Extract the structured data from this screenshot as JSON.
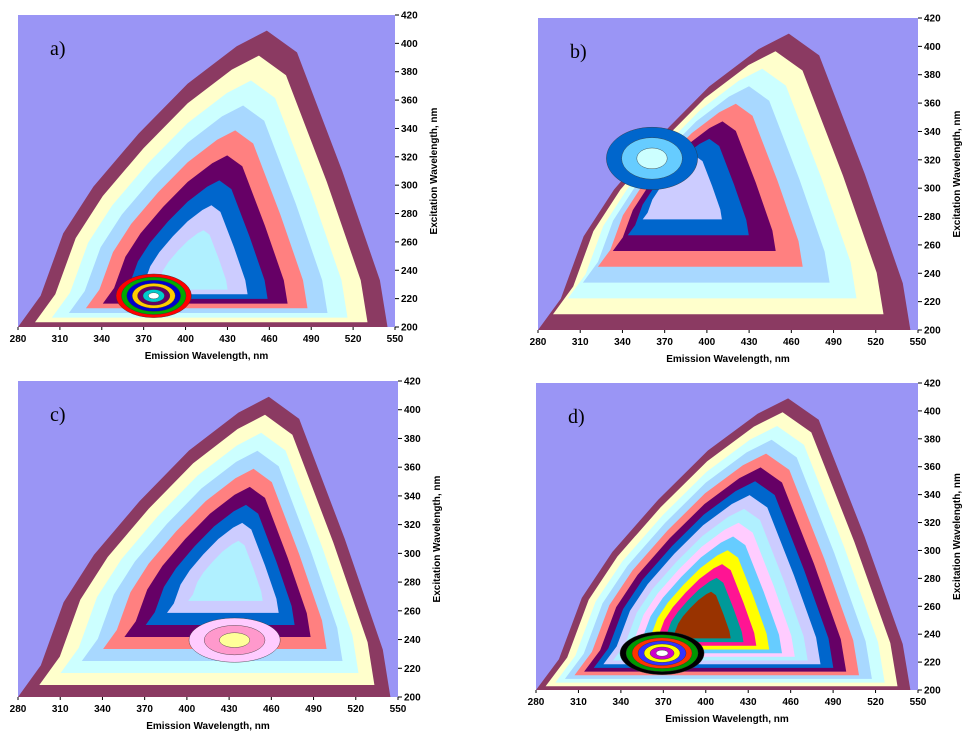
{
  "chart_data": [
    {
      "type": "contour",
      "annotation": "a)",
      "x_label": "Emission Wavelength, nm",
      "y_label": "Excitation Wavelength, nm",
      "xlim": [
        280,
        550
      ],
      "xticks": [
        280,
        310,
        340,
        370,
        400,
        430,
        460,
        490,
        520,
        550
      ],
      "ylim": [
        200,
        420
      ],
      "yticks": [
        200,
        220,
        240,
        260,
        280,
        300,
        320,
        340,
        360,
        380,
        400,
        420
      ]
    },
    {
      "type": "contour",
      "annotation": "b)",
      "x_label": "Emission Wavelength, nm",
      "y_label": "Excitation Wavelength, nm",
      "xlim": [
        280,
        550
      ],
      "xticks": [
        280,
        310,
        340,
        370,
        400,
        430,
        460,
        490,
        520,
        550
      ],
      "ylim": [
        200,
        420
      ],
      "yticks": [
        200,
        220,
        240,
        260,
        280,
        300,
        320,
        340,
        360,
        380,
        400,
        420
      ]
    },
    {
      "type": "contour",
      "annotation": "c)",
      "x_label": "Emission Wavelength, nm",
      "y_label": "Excitation Wavelength, nm",
      "xlim": [
        280,
        550
      ],
      "xticks": [
        280,
        310,
        340,
        370,
        400,
        430,
        460,
        490,
        520,
        550
      ],
      "ylim": [
        200,
        420
      ],
      "yticks": [
        200,
        220,
        240,
        260,
        280,
        300,
        320,
        340,
        360,
        380,
        400,
        420
      ]
    },
    {
      "type": "contour",
      "annotation": "d)",
      "x_label": "Emission Wavelength, nm",
      "y_label": "Excitation Wavelength, nm",
      "xlim": [
        280,
        550
      ],
      "xticks": [
        280,
        310,
        340,
        370,
        400,
        430,
        460,
        490,
        520,
        550
      ],
      "ylim": [
        200,
        420
      ],
      "yticks": [
        200,
        220,
        240,
        260,
        280,
        300,
        320,
        340,
        360,
        380,
        400,
        420
      ]
    }
  ]
}
